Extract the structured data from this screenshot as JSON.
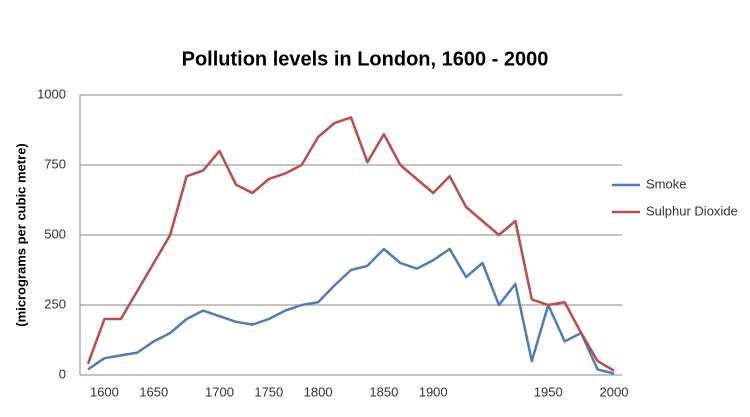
{
  "chart_data": {
    "type": "line",
    "title": "Pollution levels in London, 1600 - 2000",
    "y_label": "(micrograms per cubic metre)",
    "categories": [
      null,
      "1600",
      null,
      null,
      "1650",
      null,
      null,
      null,
      "1700",
      null,
      null,
      "1750",
      null,
      null,
      "1800",
      null,
      null,
      null,
      "1850",
      null,
      null,
      "1900",
      null,
      null,
      null,
      null,
      null,
      null,
      "1950",
      null,
      null,
      null,
      "2000"
    ],
    "series": [
      {
        "name": "Smoke",
        "color": "#4a7ebb",
        "values": [
          20,
          60,
          70,
          80,
          120,
          150,
          200,
          230,
          210,
          190,
          180,
          200,
          230,
          250,
          260,
          320,
          375,
          390,
          450,
          400,
          380,
          410,
          450,
          350,
          400,
          250,
          325,
          50,
          250,
          120,
          150,
          20,
          5
        ]
      },
      {
        "name": "Sulphur Dioxide",
        "color": "#be4b48",
        "values": [
          40,
          200,
          200,
          300,
          400,
          500,
          710,
          730,
          800,
          680,
          650,
          700,
          720,
          750,
          850,
          900,
          920,
          760,
          860,
          750,
          700,
          650,
          710,
          600,
          550,
          500,
          550,
          270,
          250,
          260,
          150,
          50,
          15
        ]
      }
    ],
    "ylim": [
      0,
      1000
    ],
    "yticks": [
      0,
      250,
      500,
      750,
      1000
    ],
    "grid": true,
    "legend": "right"
  }
}
